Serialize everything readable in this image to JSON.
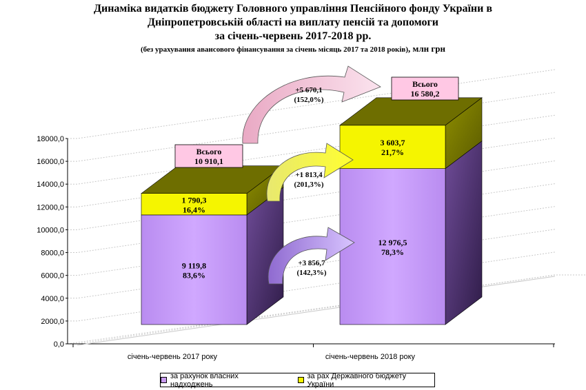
{
  "title": {
    "line1": "Динаміка видатків бюджету Головного управління Пенсійного фонду України в",
    "line2": "Дніпропетровській області на виплату пенсій та допомоги",
    "line3": "за січень-червень 2017-2018 рр.",
    "note": "(без урахування авансового фінансування за січень місяць 2017 та 2018 років)",
    "unit": ", млн грн"
  },
  "chart_data": {
    "type": "bar",
    "stacked": true,
    "three_d": true,
    "categories": [
      "січень-червень 2017 року",
      "січень-червень 2018 року"
    ],
    "ylim": [
      0,
      18000
    ],
    "yticks": [
      "0,0",
      "2000,0",
      "4000,0",
      "6000,0",
      "8000,0",
      "10000,0",
      "12000,0",
      "14000,0",
      "16000,0",
      "18000,0"
    ],
    "grid": true,
    "legend_position": "bottom",
    "series": [
      {
        "name": "за рахунок власних надходжень",
        "color": "#c89bf0",
        "values": [
          9119.8,
          12976.5
        ],
        "labels": [
          [
            "9 119,8",
            "83,6%"
          ],
          [
            "12 976,5",
            "78,3%"
          ]
        ]
      },
      {
        "name": "за рах Державного бюджету України",
        "color": "#f5f500",
        "values": [
          1790.3,
          3603.7
        ],
        "labels": [
          [
            "1 790,3",
            "16,4%"
          ],
          [
            "3 603,7",
            "21,7%"
          ]
        ]
      }
    ],
    "totals": [
      {
        "line1": "Всього",
        "line2": "10 910,1"
      },
      {
        "line1": "Всього",
        "line2": "16 580,2"
      }
    ],
    "annotations": [
      {
        "line1": "+5 670,1",
        "line2": "(152,0%)"
      },
      {
        "line1": "+1 813,4",
        "line2": "(201,3%)"
      },
      {
        "line1": "+3 856,7",
        "line2": "(142,3%)"
      }
    ]
  }
}
